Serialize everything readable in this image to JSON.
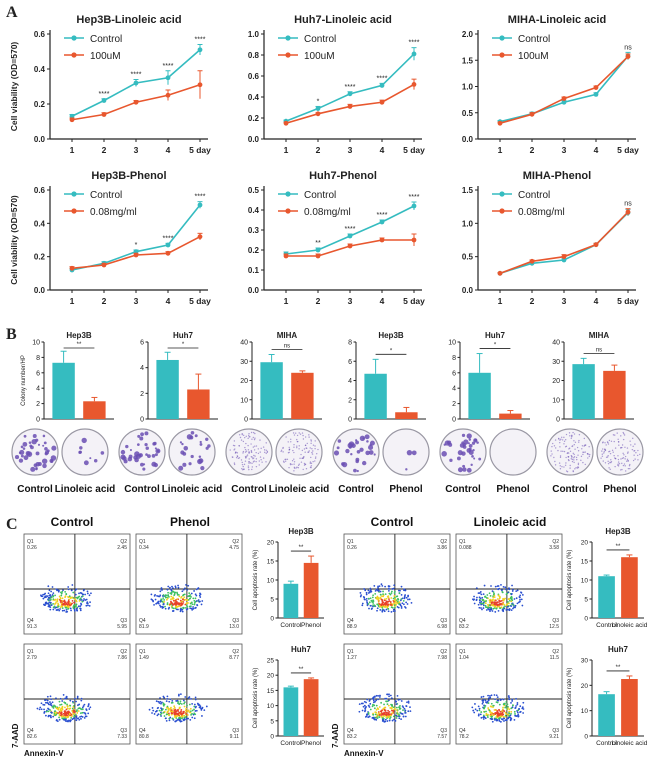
{
  "panels": {
    "a": "A",
    "b": "B",
    "c": "C"
  },
  "colors": {
    "control": "#35bcc0",
    "treat": "#e8572e",
    "dish": "#6a4fb3"
  },
  "chart_data": [
    {
      "id": "a1",
      "type": "line",
      "title": "Hep3B-Linoleic acid",
      "ylabel": "Cell viability (OD=570)",
      "categories": [
        "1",
        "2",
        "3",
        "4",
        "5 day"
      ],
      "ylim": [
        0,
        0.6
      ],
      "yticks": [
        "0.0",
        "0.2",
        "0.4",
        "0.6"
      ],
      "legend": [
        "Control",
        "100uM"
      ],
      "series": [
        {
          "name": "Control",
          "values": [
            0.13,
            0.22,
            0.32,
            0.35,
            0.51
          ],
          "err": [
            0.01,
            0.01,
            0.02,
            0.04,
            0.03
          ]
        },
        {
          "name": "100uM",
          "values": [
            0.11,
            0.14,
            0.21,
            0.25,
            0.31
          ],
          "err": [
            0.01,
            0.01,
            0.01,
            0.03,
            0.08
          ]
        }
      ],
      "sig": [
        "",
        "****",
        "****",
        "****",
        "****"
      ]
    },
    {
      "id": "a2",
      "type": "line",
      "title": "Huh7-Linoleic acid",
      "ylabel": "",
      "categories": [
        "1",
        "2",
        "3",
        "4",
        "5 day"
      ],
      "ylim": [
        0,
        1.0
      ],
      "yticks": [
        "0.0",
        "0.2",
        "0.4",
        "0.6",
        "0.8",
        "1.0"
      ],
      "legend": [
        "Control",
        "100uM"
      ],
      "series": [
        {
          "name": "Control",
          "values": [
            0.17,
            0.29,
            0.43,
            0.51,
            0.81
          ],
          "err": [
            0.01,
            0.02,
            0.02,
            0.02,
            0.06
          ]
        },
        {
          "name": "100uM",
          "values": [
            0.15,
            0.24,
            0.31,
            0.35,
            0.52
          ],
          "err": [
            0.01,
            0.01,
            0.02,
            0.02,
            0.05
          ]
        }
      ],
      "sig": [
        "",
        "*",
        "****",
        "****",
        "****"
      ]
    },
    {
      "id": "a3",
      "type": "line",
      "title": "MIHA-Linoleic acid",
      "ylabel": "",
      "categories": [
        "1",
        "2",
        "3",
        "4",
        "5 day"
      ],
      "ylim": [
        0,
        2.0
      ],
      "yticks": [
        "0.0",
        "0.5",
        "1.0",
        "1.5",
        "2.0"
      ],
      "legend": [
        "Control",
        "100uM"
      ],
      "series": [
        {
          "name": "Control",
          "values": [
            0.33,
            0.48,
            0.7,
            0.85,
            1.58
          ],
          "err": [
            0.02,
            0.03,
            0.03,
            0.03,
            0.07
          ]
        },
        {
          "name": "100uM",
          "values": [
            0.3,
            0.47,
            0.77,
            0.98,
            1.57
          ],
          "err": [
            0.02,
            0.03,
            0.03,
            0.03,
            0.05
          ]
        }
      ],
      "sig": [
        "",
        "",
        "",
        "",
        "ns"
      ]
    },
    {
      "id": "a4",
      "type": "line",
      "title": "Hep3B-Phenol",
      "ylabel": "Cell viability (OD=570)",
      "categories": [
        "1",
        "2",
        "3",
        "4",
        "5 day"
      ],
      "ylim": [
        0,
        0.6
      ],
      "yticks": [
        "0.0",
        "0.2",
        "0.4",
        "0.6"
      ],
      "legend": [
        "Control",
        "0.08mg/ml"
      ],
      "series": [
        {
          "name": "Control",
          "values": [
            0.12,
            0.16,
            0.23,
            0.27,
            0.51
          ],
          "err": [
            0.01,
            0.01,
            0.01,
            0.01,
            0.02
          ]
        },
        {
          "name": "0.08mg/ml",
          "values": [
            0.13,
            0.15,
            0.21,
            0.22,
            0.32
          ],
          "err": [
            0.01,
            0.01,
            0.01,
            0.01,
            0.02
          ]
        }
      ],
      "sig": [
        "",
        "",
        "*",
        "****",
        "****"
      ]
    },
    {
      "id": "a5",
      "type": "line",
      "title": "Huh7-Phenol",
      "ylabel": "",
      "categories": [
        "1",
        "2",
        "3",
        "4",
        "5 day"
      ],
      "ylim": [
        0,
        0.5
      ],
      "yticks": [
        "0.0",
        "0.1",
        "0.2",
        "0.3",
        "0.4",
        "0.5"
      ],
      "legend": [
        "Control",
        "0.08mg/ml"
      ],
      "series": [
        {
          "name": "Control",
          "values": [
            0.18,
            0.2,
            0.27,
            0.34,
            0.42
          ],
          "err": [
            0.01,
            0.01,
            0.01,
            0.01,
            0.02
          ]
        },
        {
          "name": "0.08mg/ml",
          "values": [
            0.17,
            0.17,
            0.22,
            0.25,
            0.25
          ],
          "err": [
            0.01,
            0.01,
            0.01,
            0.01,
            0.03
          ]
        }
      ],
      "sig": [
        "",
        "**",
        "****",
        "****",
        "****"
      ]
    },
    {
      "id": "a6",
      "type": "line",
      "title": "MIHA-Phenol",
      "ylabel": "",
      "categories": [
        "1",
        "2",
        "3",
        "4",
        "5 day"
      ],
      "ylim": [
        0,
        1.5
      ],
      "yticks": [
        "0.0",
        "0.5",
        "1.0",
        "1.5"
      ],
      "legend": [
        "Control",
        "0.08mg/ml"
      ],
      "series": [
        {
          "name": "Control",
          "values": [
            0.25,
            0.4,
            0.45,
            0.68,
            1.16
          ],
          "err": [
            0.01,
            0.01,
            0.02,
            0.02,
            0.05
          ]
        },
        {
          "name": "0.08mg/ml",
          "values": [
            0.25,
            0.43,
            0.5,
            0.68,
            1.17
          ],
          "err": [
            0.01,
            0.02,
            0.03,
            0.02,
            0.05
          ]
        }
      ],
      "sig": [
        "",
        "",
        "",
        "",
        "ns"
      ]
    },
    {
      "id": "b1",
      "type": "bar",
      "title": "Hep3B",
      "ylabel": "Colony number/HP",
      "ylim": [
        0,
        10
      ],
      "yticks": [
        "0",
        "2",
        "4",
        "6",
        "8",
        "10"
      ],
      "values": [
        7.3,
        2.3
      ],
      "err": [
        1.5,
        0.5
      ],
      "sig": "**"
    },
    {
      "id": "b2",
      "type": "bar",
      "title": "Huh7",
      "ylabel": "",
      "ylim": [
        0,
        6
      ],
      "yticks": [
        "0",
        "2",
        "4",
        "6"
      ],
      "values": [
        4.6,
        2.3
      ],
      "err": [
        0.6,
        1.2
      ],
      "sig": "*"
    },
    {
      "id": "b3",
      "type": "bar",
      "title": "MIHA",
      "ylabel": "",
      "ylim": [
        0,
        40
      ],
      "yticks": [
        "0",
        "10",
        "20",
        "30",
        "40"
      ],
      "values": [
        29.5,
        24
      ],
      "err": [
        4,
        1
      ],
      "sig": "ns"
    },
    {
      "id": "b4",
      "type": "bar",
      "title": "Hep3B",
      "ylabel": "",
      "ylim": [
        0,
        8
      ],
      "yticks": [
        "0",
        "2",
        "4",
        "6",
        "8"
      ],
      "values": [
        4.7,
        0.7
      ],
      "err": [
        1.5,
        0.5
      ],
      "sig": "*"
    },
    {
      "id": "b5",
      "type": "bar",
      "title": "Huh7",
      "ylabel": "",
      "ylim": [
        0,
        10
      ],
      "yticks": [
        "0",
        "2",
        "4",
        "6",
        "8",
        "10"
      ],
      "values": [
        6,
        0.7
      ],
      "err": [
        2.5,
        0.4
      ],
      "sig": "*"
    },
    {
      "id": "b6",
      "type": "bar",
      "title": "MIHA",
      "ylabel": "",
      "ylim": [
        0,
        40
      ],
      "yticks": [
        "0",
        "10",
        "20",
        "30",
        "40"
      ],
      "values": [
        28.5,
        25
      ],
      "err": [
        3,
        3
      ],
      "sig": "ns"
    },
    {
      "id": "c1",
      "type": "bar",
      "title": "Hep3B",
      "ylabel": "Cell apoptosis rate (%)",
      "ylim": [
        0,
        20
      ],
      "yticks": [
        "0",
        "5",
        "10",
        "15",
        "20"
      ],
      "values": [
        9,
        14.5
      ],
      "err": [
        0.7,
        1.8
      ],
      "sig": "**",
      "categories": [
        "Control",
        "Phenol"
      ]
    },
    {
      "id": "c2",
      "type": "bar",
      "title": "Huh7",
      "ylabel": "Cell apoptosis rate (%)",
      "ylim": [
        0,
        25
      ],
      "yticks": [
        "0",
        "5",
        "10",
        "15",
        "20",
        "25"
      ],
      "values": [
        16,
        18.7
      ],
      "err": [
        0.4,
        0.4
      ],
      "sig": "**",
      "categories": [
        "Control",
        "Phenol"
      ]
    },
    {
      "id": "c3",
      "type": "bar",
      "title": "Hep3B",
      "ylabel": "Cell apoptosis rate (%)",
      "ylim": [
        0,
        20
      ],
      "yticks": [
        "0",
        "5",
        "10",
        "15",
        "20"
      ],
      "values": [
        11,
        16
      ],
      "err": [
        0.3,
        0.6
      ],
      "sig": "**",
      "categories": [
        "Control",
        "Linoleic acid"
      ]
    },
    {
      "id": "c4",
      "type": "bar",
      "title": "Huh7",
      "ylabel": "Cell apoptosis rate (%)",
      "ylim": [
        0,
        30
      ],
      "yticks": [
        "0",
        "10",
        "20",
        "30"
      ],
      "values": [
        16.5,
        22.5
      ],
      "err": [
        1,
        1.2
      ],
      "sig": "**",
      "categories": [
        "Control",
        "Linoleic acid"
      ]
    }
  ],
  "dishes": [
    {
      "left": "Control",
      "right": "Linoleic acid",
      "leftDots": 40,
      "rightDots": 8
    },
    {
      "left": "Control",
      "right": "Linoleic acid",
      "leftDots": 35,
      "rightDots": 22
    },
    {
      "left": "Control",
      "right": "Linoleic acid",
      "leftDots": 120,
      "rightDots": 110
    },
    {
      "left": "Control",
      "right": "Phenol",
      "leftDots": 30,
      "rightDots": 3
    },
    {
      "left": "Control",
      "right": "Phenol",
      "leftDots": 35,
      "rightDots": 0
    },
    {
      "left": "Control",
      "right": "Phenol",
      "leftDots": 120,
      "rightDots": 110
    }
  ],
  "flow": {
    "headers": [
      "Control",
      "Phenol",
      "Control",
      "Linoleic acid"
    ],
    "xlabel": "Annexin-V",
    "ylabel": "7-AAD",
    "quads": [
      [
        "Q1\n0.26",
        "Q2\n2.45",
        "Q4\n91.3",
        "Q3\n5.95"
      ],
      [
        "Q1\n0.34",
        "Q2\n4.75",
        "Q4\n81.9",
        "Q3\n13.0"
      ],
      [
        "Q1\n0.26",
        "Q2\n3.86",
        "Q4\n88.9",
        "Q3\n6.98"
      ],
      [
        "Q1\n0.088",
        "Q2\n3.58",
        "Q4\n83.2",
        "Q3\n12.5"
      ],
      [
        "Q1\n2.79",
        "Q2\n7.86",
        "Q4\n82.6",
        "Q3\n7.33"
      ],
      [
        "Q1\n1.49",
        "Q2\n8.77",
        "Q4\n80.8",
        "Q3\n9.11"
      ],
      [
        "Q1\n1.27",
        "Q2\n7.98",
        "Q4\n83.2",
        "Q3\n7.57"
      ],
      [
        "Q1\n1.04",
        "Q2\n11.5",
        "Q4\n78.2",
        "Q3\n9.21"
      ]
    ]
  }
}
